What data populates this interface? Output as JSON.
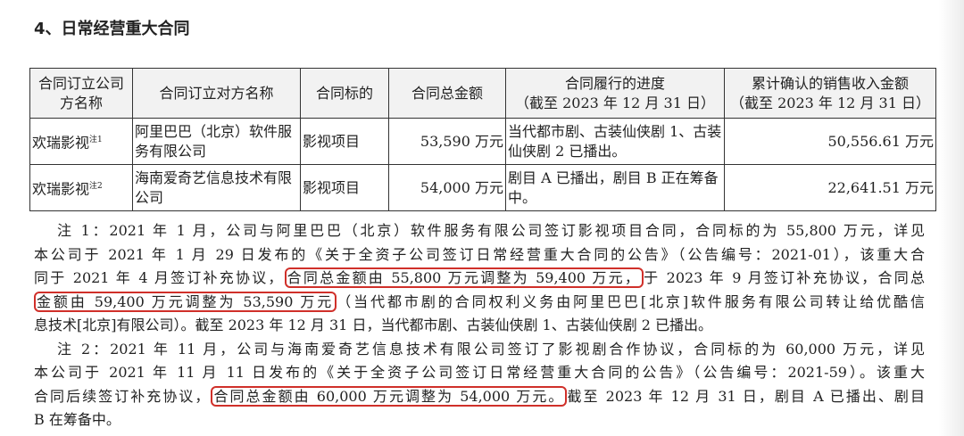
{
  "title": "4、日常经营重大合同",
  "table": {
    "headers": [
      "合同订立公司方名称",
      "合同订立对方名称",
      "合同标的",
      "合同总金额",
      "合同履行的进度\n（截至 2023 年 12 月 31 日）",
      "累计确认的销售收入金额\n（截至 2023 年 12 月 31 日）"
    ],
    "rows": [
      {
        "company": "欢瑞影视",
        "note": "注1",
        "party": "阿里巴巴（北京）软件服务有限公司",
        "subject": "影视项目",
        "amount": "53,590 万元",
        "progress": "当代都市剧、古装仙侠剧 1、古装仙侠剧 2 已播出。",
        "revenue": "50,556.61 万元"
      },
      {
        "company": "欢瑞影视",
        "note": "注2",
        "party": "海南爱奇艺信息技术有限公司",
        "subject": "影视项目",
        "amount": "54,000 万元",
        "progress": "剧目 A 已播出，剧目 B 正在筹备中。",
        "revenue": "22,641.51 万元"
      }
    ]
  },
  "notes": {
    "highlight_color": "#d0302a",
    "lines": [
      [
        {
          "t": "注 1：2021 年 1 月，公司与阿里巴巴（北京）软件服务有限公司签订影视项目合同，合同标的为 55,800 万元，详见"
        }
      ],
      [
        {
          "t": "本公司于 2021 年 1 月 29 日发布的《关于全资子公司签订日常经营重大合同的公告》（公告编号：2021-01），该重大合"
        }
      ],
      [
        {
          "t": "同于 2021 年 4 月签订补充协议，"
        },
        {
          "t": "合同总金额由 55,800 万元调整为 59,400 万元，",
          "hl": true
        },
        {
          "t": "于 2023 年 9 月签订补充协议，合同总"
        }
      ],
      [
        {
          "t": "金额由 59,400 万元调整为 53,590 万元",
          "hl": true
        },
        {
          "t": "（当代都市剧的合同权利义务由阿里巴巴[北京]软件服务有限公司转让给优酷信"
        }
      ],
      [
        {
          "t": "息技术[北京]有限公司）。截至 2023 年 12 月 31 日，当代都市剧、古装仙侠剧 1、古装仙侠剧 2 已播出。"
        }
      ],
      [
        {
          "t": "注 2：2021 年 11 月，公司与海南爱奇艺信息技术有限公司签订了影视剧合作协议，合同标的为 60,000 万元，详见"
        }
      ],
      [
        {
          "t": "本公司于 2021 年 11 月 11 日发布的《关于全资子公司签订日常经营重大合同的公告》（公告编号：2021-59）。该重大"
        }
      ],
      [
        {
          "t": "合同后续签订补充协议，"
        },
        {
          "t": "合同总金额由 60,000 万元调整为 54,000 万元。",
          "hl": true
        },
        {
          "t": "截至 2023 年 12 月 31 日，剧目 A 已播出、剧目"
        }
      ],
      [
        {
          "t": "B 在筹备中。"
        }
      ]
    ]
  }
}
